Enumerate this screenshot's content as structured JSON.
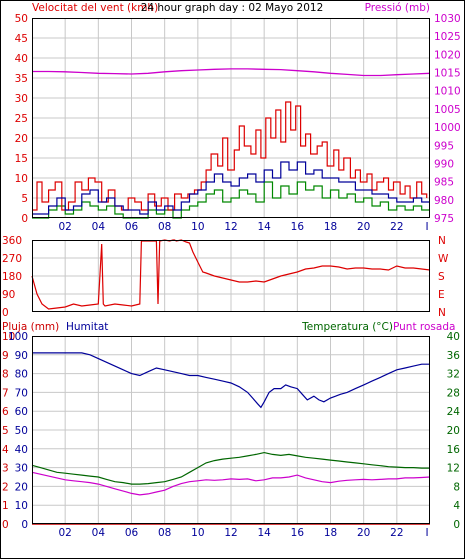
{
  "colors": {
    "wind": "#dd0000",
    "gust_green": "#008800",
    "navy": "#000099",
    "pressure": "#cc00cc",
    "humidity": "#000099",
    "temperature": "#006600",
    "dewpoint": "#cc00cc",
    "rain": "#cc0000",
    "grid": "#c8c8c8",
    "frame": "#000000"
  },
  "chart_data": [
    {
      "type": "line",
      "title": "24 hour graph day : 02 Mayo 2012",
      "left_axis_label": "Velocitat del vent (kmh)",
      "right_axis_label": "Pressió (mb)",
      "left_ticks": [
        "0",
        "5",
        "10",
        "15",
        "20",
        "25",
        "30",
        "35",
        "40",
        "45",
        "50"
      ],
      "right_ticks": [
        "975",
        "980",
        "985",
        "990",
        "995",
        "1000",
        "1005",
        "1010",
        "1015",
        "1020",
        "1025",
        "1030"
      ],
      "x_ticks": [
        "02",
        "04",
        "06",
        "08",
        "10",
        "12",
        "14",
        "16",
        "18",
        "20",
        "22"
      ],
      "x_end_tick": "I",
      "ylim": [
        0,
        50
      ],
      "ylim_right": [
        975,
        1030
      ],
      "xlim": [
        0,
        24
      ],
      "series": [
        {
          "key": "pressure",
          "axis": "right",
          "x": [
            0,
            1,
            2,
            3,
            4,
            5,
            6,
            7,
            8,
            9,
            10,
            11,
            12,
            13,
            14,
            15,
            16,
            17,
            18,
            19,
            20,
            21,
            22,
            23,
            24
          ],
          "values": [
            1015.3,
            1015.3,
            1015.2,
            1015.0,
            1014.8,
            1014.7,
            1014.6,
            1014.8,
            1015.2,
            1015.5,
            1015.7,
            1015.9,
            1016.0,
            1016.0,
            1015.9,
            1015.8,
            1015.5,
            1015.2,
            1014.8,
            1014.5,
            1014.2,
            1014.2,
            1014.4,
            1014.6,
            1014.8
          ]
        },
        {
          "key": "wind_gust",
          "axis": "left",
          "x": [
            0,
            0.3,
            0.6,
            1,
            1.4,
            1.8,
            2.2,
            2.6,
            3,
            3.4,
            3.8,
            4.2,
            4.6,
            5,
            5.4,
            5.8,
            6.2,
            6.6,
            7,
            7.4,
            7.8,
            8.2,
            8.6,
            9,
            9.4,
            9.8,
            10.2,
            10.5,
            10.8,
            11.2,
            11.5,
            11.8,
            12.2,
            12.5,
            12.8,
            13.2,
            13.5,
            13.8,
            14.1,
            14.4,
            14.7,
            15,
            15.3,
            15.6,
            15.9,
            16.2,
            16.5,
            16.8,
            17.2,
            17.5,
            17.8,
            18.2,
            18.5,
            18.8,
            19.2,
            19.5,
            19.8,
            20.2,
            20.5,
            20.8,
            21.2,
            21.5,
            21.8,
            22.2,
            22.5,
            22.8,
            23.2,
            23.5,
            23.8
          ],
          "values": [
            2,
            9,
            4,
            7,
            9,
            2,
            4,
            9,
            7,
            10,
            9,
            4,
            7,
            3,
            2,
            5,
            4,
            2,
            6,
            3,
            5,
            2,
            6,
            5,
            6,
            7,
            9,
            12,
            16,
            13,
            20,
            12,
            17,
            23,
            18,
            16,
            22,
            15,
            25,
            20,
            27,
            19,
            29,
            22,
            28,
            18,
            21,
            16,
            18,
            19,
            13,
            17,
            12,
            15,
            10,
            12,
            9,
            11,
            7,
            9,
            10,
            7,
            9,
            6,
            8,
            5,
            9,
            6,
            5
          ]
        },
        {
          "key": "wind_avg",
          "axis": "left",
          "x": [
            0,
            0.5,
            1,
            1.5,
            2,
            2.5,
            3,
            3.5,
            4,
            4.5,
            5,
            5.5,
            6,
            6.5,
            7,
            7.5,
            8,
            8.5,
            9,
            9.5,
            10,
            10.5,
            11,
            11.5,
            12,
            12.5,
            13,
            13.5,
            14,
            14.5,
            15,
            15.5,
            16,
            16.5,
            17,
            17.5,
            18,
            18.5,
            19,
            19.5,
            20,
            20.5,
            21,
            21.5,
            22,
            22.5,
            23,
            23.5,
            24
          ],
          "values": [
            1,
            1,
            3,
            5,
            2,
            3,
            6,
            7,
            4,
            5,
            3,
            2,
            2,
            1,
            4,
            2,
            3,
            2,
            4,
            6,
            7,
            9,
            11,
            9,
            8,
            10,
            11,
            9,
            12,
            10,
            14,
            12,
            14,
            11,
            12,
            10,
            10,
            9,
            9,
            7,
            7,
            6,
            6,
            5,
            4,
            4,
            5,
            4,
            4
          ]
        },
        {
          "key": "wind_min",
          "axis": "left",
          "x": [
            0,
            0.5,
            1,
            1.5,
            2,
            2.5,
            3,
            3.5,
            4,
            4.5,
            5,
            5.5,
            6,
            6.5,
            7,
            7.5,
            8,
            8.5,
            9,
            9.5,
            10,
            10.5,
            11,
            11.5,
            12,
            12.5,
            13,
            13.5,
            14,
            14.5,
            15,
            15.5,
            16,
            16.5,
            17,
            17.5,
            18,
            18.5,
            19,
            19.5,
            20,
            20.5,
            21,
            21.5,
            22,
            22.5,
            23,
            23.5,
            24
          ],
          "values": [
            0,
            0,
            2,
            3,
            1,
            2,
            4,
            3,
            2,
            3,
            1,
            0,
            0,
            0,
            2,
            1,
            2,
            0,
            2,
            3,
            4,
            6,
            7,
            4,
            5,
            7,
            6,
            4,
            9,
            5,
            8,
            6,
            9,
            7,
            8,
            5,
            7,
            5,
            6,
            4,
            5,
            3,
            4,
            2,
            3,
            2,
            3,
            2,
            2
          ]
        }
      ]
    },
    {
      "type": "line",
      "left_ticks": [
        "0",
        "90",
        "180",
        "270",
        "360"
      ],
      "right_ticks": [
        "N",
        "E",
        "S",
        "W",
        "N"
      ],
      "ylim": [
        0,
        360
      ],
      "xlim": [
        0,
        24
      ],
      "series": [
        {
          "key": "wind_direction",
          "x": [
            0,
            0.3,
            0.6,
            1,
            1.5,
            2,
            2.5,
            3,
            3.5,
            4,
            4.2,
            4.3,
            4.4,
            5,
            5.5,
            6,
            6.5,
            6.6,
            6.7,
            7.5,
            7.6,
            7.7,
            8,
            8.3,
            8.5,
            8.6,
            8.7,
            9,
            9.3,
            9.5,
            9.7,
            10,
            10.3,
            10.5,
            11,
            11.5,
            12,
            12.5,
            13,
            13.5,
            14,
            14.5,
            15,
            15.5,
            16,
            16.5,
            17,
            17.5,
            18,
            18.5,
            19,
            19.5,
            20,
            20.5,
            21,
            21.5,
            22,
            22.5,
            23,
            23.5,
            24
          ],
          "values": [
            180,
            90,
            40,
            15,
            20,
            25,
            40,
            30,
            35,
            40,
            340,
            40,
            30,
            40,
            35,
            30,
            40,
            355,
            355,
            355,
            40,
            355,
            360,
            355,
            360,
            360,
            355,
            360,
            350,
            345,
            300,
            250,
            200,
            195,
            180,
            170,
            160,
            150,
            150,
            155,
            150,
            165,
            180,
            190,
            200,
            215,
            220,
            230,
            230,
            225,
            215,
            220,
            220,
            215,
            215,
            210,
            230,
            220,
            220,
            215,
            210
          ]
        }
      ]
    },
    {
      "type": "line",
      "top_left_label": "Pluja (mm)",
      "top_mid_label": "Humitat",
      "top_right_label_a": "Temperatura (°C)",
      "top_right_label_b": "Punt rosada",
      "left_ticks": [
        "0",
        "1",
        "2",
        "3",
        "4",
        "5",
        "6",
        "7",
        "8",
        "9",
        "10"
      ],
      "left2_ticks": [
        "0",
        "10",
        "20",
        "30",
        "40",
        "50",
        "60",
        "70",
        "80",
        "90",
        "100"
      ],
      "right_ticks": [
        "0",
        "4",
        "8",
        "12",
        "16",
        "20",
        "24",
        "28",
        "32",
        "36",
        "40"
      ],
      "ylim": [
        0,
        100
      ],
      "ylim_right": [
        0,
        40
      ],
      "xlim": [
        0,
        24
      ],
      "series": [
        {
          "key": "humidity",
          "axis": "left2",
          "x": [
            0,
            1,
            2,
            3,
            3.5,
            4,
            4.5,
            5,
            5.5,
            6,
            6.5,
            7,
            7.5,
            8,
            8.5,
            9,
            9.5,
            10,
            10.5,
            11,
            11.5,
            12,
            12.5,
            13,
            13.3,
            13.6,
            13.8,
            14,
            14.3,
            14.6,
            15,
            15.3,
            15.6,
            16,
            16.3,
            16.6,
            17,
            17.3,
            17.6,
            18,
            18.3,
            18.6,
            19,
            19.5,
            20,
            20.5,
            21,
            21.5,
            22,
            22.5,
            23,
            23.5,
            24
          ],
          "values": [
            91,
            91,
            91,
            91,
            90,
            88,
            86,
            84,
            82,
            80,
            79,
            81,
            83,
            82,
            81,
            80,
            79,
            79,
            78,
            77,
            76,
            75,
            73,
            70,
            67,
            64,
            62,
            65,
            70,
            72,
            72,
            74,
            73,
            72,
            69,
            66,
            68,
            66,
            65,
            67,
            68,
            69,
            70,
            72,
            74,
            76,
            78,
            80,
            82,
            83,
            84,
            85,
            85
          ]
        },
        {
          "key": "temperature",
          "axis": "right",
          "x": [
            0,
            0.5,
            1,
            1.5,
            2,
            2.5,
            3,
            3.5,
            4,
            4.5,
            5,
            5.5,
            6,
            6.5,
            7,
            7.5,
            8,
            8.5,
            9,
            9.5,
            10,
            10.5,
            11,
            11.5,
            12,
            12.5,
            13,
            13.5,
            14,
            14.5,
            15,
            15.5,
            16,
            16.5,
            17,
            17.5,
            18,
            18.5,
            19,
            19.5,
            20,
            20.5,
            21,
            21.5,
            22,
            22.5,
            23,
            23.5,
            24
          ],
          "values": [
            12.5,
            12,
            11.5,
            11,
            10.8,
            10.6,
            10.4,
            10.2,
            10,
            9.5,
            9,
            8.8,
            8.5,
            8.5,
            8.6,
            8.8,
            9,
            9.5,
            10,
            11,
            12,
            13,
            13.5,
            13.8,
            14,
            14.2,
            14.5,
            14.8,
            15.2,
            14.8,
            14.6,
            14.8,
            14.5,
            14.2,
            14.0,
            13.8,
            13.6,
            13.4,
            13.2,
            13.0,
            12.8,
            12.6,
            12.4,
            12.2,
            12.1,
            12,
            12,
            11.9,
            11.9
          ]
        },
        {
          "key": "dewpoint",
          "axis": "right",
          "x": [
            0,
            0.5,
            1,
            1.5,
            2,
            2.5,
            3,
            3.5,
            4,
            4.5,
            5,
            5.5,
            6,
            6.5,
            7,
            7.5,
            8,
            8.5,
            9,
            9.5,
            10,
            10.5,
            11,
            11.5,
            12,
            12.5,
            13,
            13.5,
            14,
            14.5,
            15,
            15.5,
            16,
            16.5,
            17,
            17.5,
            18,
            18.5,
            19,
            19.5,
            20,
            20.5,
            21,
            21.5,
            22,
            22.5,
            23,
            23.5,
            24
          ],
          "values": [
            11,
            10.6,
            10.2,
            9.8,
            9.4,
            9.2,
            9,
            8.8,
            8.5,
            8,
            7.5,
            7,
            6.5,
            6.2,
            6.4,
            6.8,
            7.2,
            8,
            8.6,
            9,
            9.2,
            9.4,
            9.3,
            9.4,
            9.6,
            9.5,
            9.6,
            9.2,
            9.4,
            9.8,
            9.8,
            10,
            10.4,
            9.8,
            9.4,
            9.0,
            8.8,
            9.1,
            9.3,
            9.4,
            9.5,
            9.4,
            9.5,
            9.6,
            9.6,
            9.8,
            9.8,
            9.9,
            10
          ]
        },
        {
          "key": "rain",
          "axis": "left",
          "x": [
            0,
            24
          ],
          "values": [
            0,
            0
          ]
        }
      ]
    }
  ]
}
